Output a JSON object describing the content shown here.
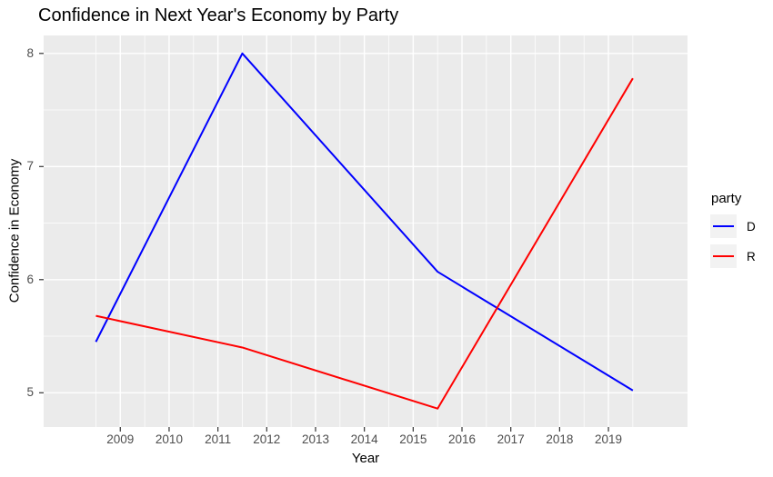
{
  "title": "Confidence in Next Year's Economy by Party",
  "chart_data": {
    "type": "line",
    "title": "Confidence in Next Year's Economy by Party",
    "xlabel": "Year",
    "ylabel": "Confidence in Economy",
    "x": [
      2008.5,
      2011.5,
      2015.5,
      2019.5
    ],
    "series": [
      {
        "name": "D",
        "color": "#0000ff",
        "values": [
          5.45,
          8.0,
          6.07,
          5.02
        ]
      },
      {
        "name": "R",
        "color": "#ff0000",
        "values": [
          5.68,
          5.4,
          4.86,
          7.78
        ]
      }
    ],
    "x_ticks": [
      2009,
      2010,
      2011,
      2012,
      2013,
      2014,
      2015,
      2016,
      2017,
      2018,
      2019
    ],
    "y_ticks": [
      5,
      6,
      7,
      8
    ],
    "x_minor": [
      2008.5,
      2009.5,
      2010.5,
      2011.5,
      2012.5,
      2013.5,
      2014.5,
      2015.5,
      2016.5,
      2017.5,
      2018.5,
      2019.5
    ],
    "y_minor": [
      5.5,
      6.5,
      7.5
    ],
    "xlim": [
      2007.43,
      2020.62
    ],
    "ylim": [
      4.697,
      8.159
    ],
    "grid": true,
    "legend_position": "right"
  },
  "legend": {
    "title": "party",
    "entries": [
      {
        "label": "D",
        "color": "#0000ff"
      },
      {
        "label": "R",
        "color": "#ff0000"
      }
    ]
  },
  "colors": {
    "panel_bg": "#ebebeb",
    "gridline": "#ffffff",
    "tick_mark": "#333333",
    "tick_label": "#4d4d4d",
    "text": "#000000",
    "legend_key_bg": "#f2f2f2"
  }
}
